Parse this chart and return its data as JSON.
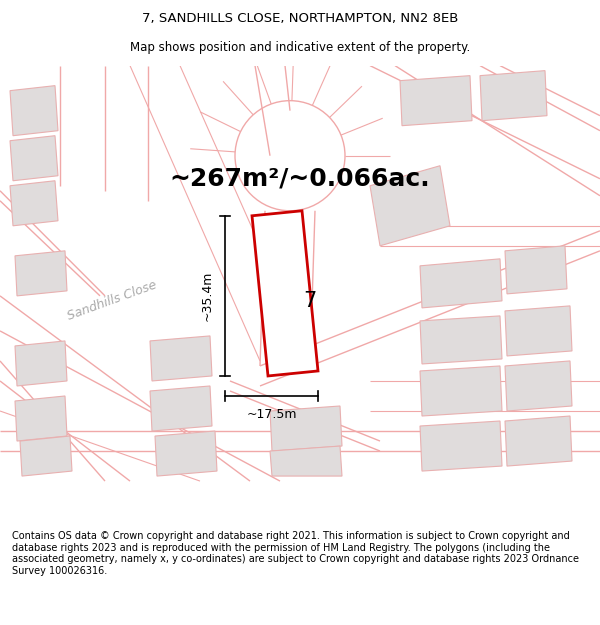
{
  "title": "7, SANDHILLS CLOSE, NORTHAMPTON, NN2 8EB",
  "subtitle": "Map shows position and indicative extent of the property.",
  "area_text": "~267m²/~0.066ac.",
  "label_7": "7",
  "dim_horizontal": "~17.5m",
  "dim_vertical": "~35.4m",
  "street_label": "Sandhills Close",
  "footer_text": "Contains OS data © Crown copyright and database right 2021. This information is subject to Crown copyright and database rights 2023 and is reproduced with the permission of HM Land Registry. The polygons (including the associated geometry, namely x, y co-ordinates) are subject to Crown copyright and database rights 2023 Ordnance Survey 100026316.",
  "bg_color": "#ffffff",
  "line_color": "#f0a8a8",
  "highlight_color": "#cc0000",
  "building_fill": "#e0dcdc",
  "building_edge": "#e8b0b0",
  "title_fontsize": 9.5,
  "subtitle_fontsize": 8.5,
  "area_fontsize": 18,
  "footer_fontsize": 7.0
}
